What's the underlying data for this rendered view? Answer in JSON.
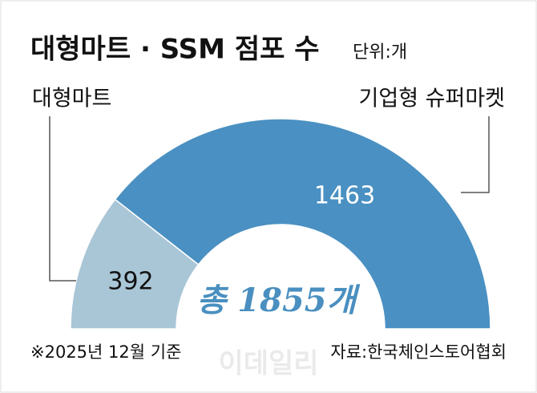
{
  "chart_data": {
    "type": "half-donut",
    "title": "대형마트 · SSM 점포 수",
    "unit": "단위:개",
    "categories": [
      "대형마트",
      "기업형 슈퍼마켓"
    ],
    "values": [
      392,
      1463
    ],
    "colors": [
      "#a9c6d7",
      "#4a90c2"
    ],
    "center_label": "총 1855개",
    "note": "※2025년 12월 기준",
    "source": "자료:한국체인스토어협회",
    "watermark": "이데일리"
  }
}
